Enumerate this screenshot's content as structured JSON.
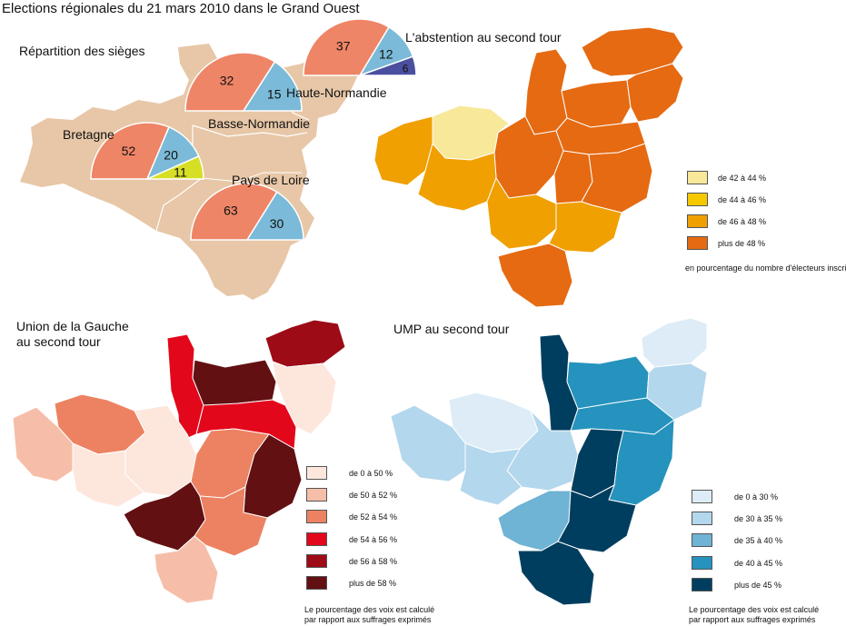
{
  "title": "Elections régionales du 21 mars 2010 dans le Grand Ouest",
  "seats": {
    "heading": "Répartition des sièges",
    "regions": [
      {
        "name": "Haute-Normandie",
        "slices": [
          {
            "value": 37,
            "color": "#ee8567"
          },
          {
            "value": 12,
            "color": "#7bbad8"
          },
          {
            "value": 6,
            "color": "#4b4fa0"
          }
        ]
      },
      {
        "name": "Basse-Normandie",
        "slices": [
          {
            "value": 32,
            "color": "#ee8567"
          },
          {
            "value": 15,
            "color": "#7bbad8"
          }
        ]
      },
      {
        "name": "Bretagne",
        "slices": [
          {
            "value": 52,
            "color": "#ee8567"
          },
          {
            "value": 20,
            "color": "#7bbad8"
          },
          {
            "value": 11,
            "color": "#d6df24"
          }
        ]
      },
      {
        "name": "Pays de Loire",
        "slices": [
          {
            "value": 63,
            "color": "#ee8567"
          },
          {
            "value": 30,
            "color": "#7bbad8"
          }
        ]
      }
    ]
  },
  "abstention": {
    "heading": "L'abstention au second tour",
    "legend": [
      {
        "label": "de 42 à 44 %",
        "color": "#f7e89a"
      },
      {
        "label": "de 44 à 46 %",
        "color": "#f6c800"
      },
      {
        "label": "de 46 à 48 %",
        "color": "#f0a000"
      },
      {
        "label": "plus de 48 %",
        "color": "#e56a12"
      }
    ],
    "note": "en pourcentage du nombre d'électeurs inscrits"
  },
  "gauche": {
    "heading_line1": "Union de la Gauche",
    "heading_line2": "au second tour",
    "legend": [
      {
        "label": "de 0 à 50 %",
        "color": "#fde6dc"
      },
      {
        "label": "de 50 à 52 %",
        "color": "#f6bea8"
      },
      {
        "label": "de 52 à 54 %",
        "color": "#ec8262"
      },
      {
        "label": "de 54 à 56 %",
        "color": "#e3071b"
      },
      {
        "label": "de 56 à 58 %",
        "color": "#9c0b16"
      },
      {
        "label": "plus de 58 %",
        "color": "#621012"
      }
    ],
    "note_line1": "Le pourcentage des voix est calculé",
    "note_line2": "par rapport aux suffrages exprimés"
  },
  "ump": {
    "heading": "UMP au second tour",
    "legend": [
      {
        "label": "de 0 à 30 %",
        "color": "#ddecf6"
      },
      {
        "label": "de 30 à 35 %",
        "color": "#b3d7ec"
      },
      {
        "label": "de 35 à 40 %",
        "color": "#6fb3d5"
      },
      {
        "label": "de 40 à 45 %",
        "color": "#2593bd"
      },
      {
        "label": "plus de 45 %",
        "color": "#003e5f"
      }
    ],
    "note_line1": "Le pourcentage des voix est calculé",
    "note_line2": "par rapport aux suffrages exprimés"
  },
  "map_colors": {
    "base": "#e7c7a7",
    "border": "#ffffff"
  }
}
